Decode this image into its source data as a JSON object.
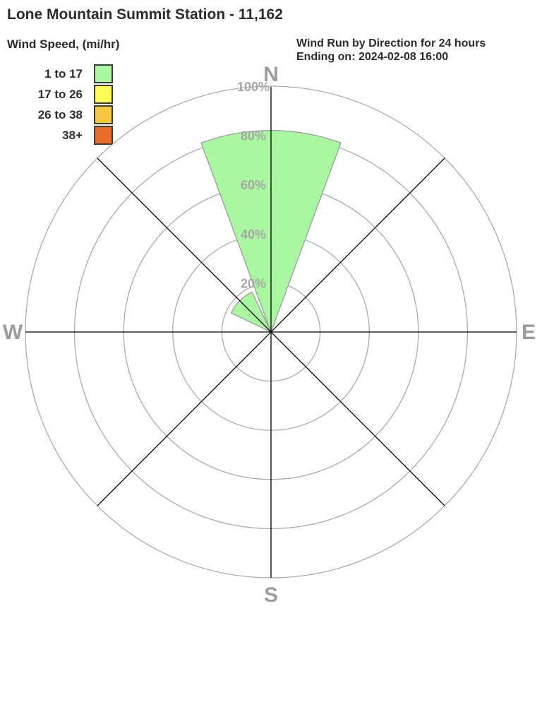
{
  "header": {
    "title": "Lone Mountain Summit Station - 11,162",
    "subtitle_line1": "Wind Run by Direction for 24 hours",
    "subtitle_line2": "Ending on: 2024-02-08 16:00"
  },
  "legend": {
    "title": "Wind Speed, (mi/hr)",
    "items": [
      {
        "label": "1 to 17",
        "color": "#a9f7a1"
      },
      {
        "label": "17 to 26",
        "color": "#fdfd55"
      },
      {
        "label": "26 to 38",
        "color": "#f4c93f"
      },
      {
        "label": "38+",
        "color": "#eb6c29"
      }
    ]
  },
  "chart_data": {
    "type": "wind_rose",
    "title": "Wind Run by Direction for 24 hours",
    "subtitle": "Ending on: 2024-02-08 16:00",
    "units": "percent of wind run",
    "sector_width_deg": 45,
    "max_percent": 100,
    "ring_tick_values": [
      20,
      40,
      60,
      80,
      100
    ],
    "ring_tick_labels": [
      "20%",
      "40%",
      "60%",
      "80%",
      "100%"
    ],
    "compass_labels": {
      "north": "N",
      "east": "E",
      "south": "S",
      "west": "W"
    },
    "series": [
      {
        "name": "1 to 17",
        "color": "#a9f7a1",
        "points": [
          {
            "direction": "N",
            "azimuth_deg": 0,
            "value_percent": 82
          },
          {
            "direction": "NW",
            "azimuth_deg": 315,
            "value_percent": 18
          }
        ]
      },
      {
        "name": "17 to 26",
        "color": "#fdfd55",
        "points": []
      },
      {
        "name": "26 to 38",
        "color": "#f4c93f",
        "points": []
      },
      {
        "name": "38+",
        "color": "#eb6c29",
        "points": []
      }
    ],
    "grid_color": "#ababab",
    "axis_color": "#000000",
    "wedge_stroke_color": "#9c9c9c",
    "tick_label_color": "#a6a6a6",
    "compass_label_color": "#9c9c9c"
  }
}
